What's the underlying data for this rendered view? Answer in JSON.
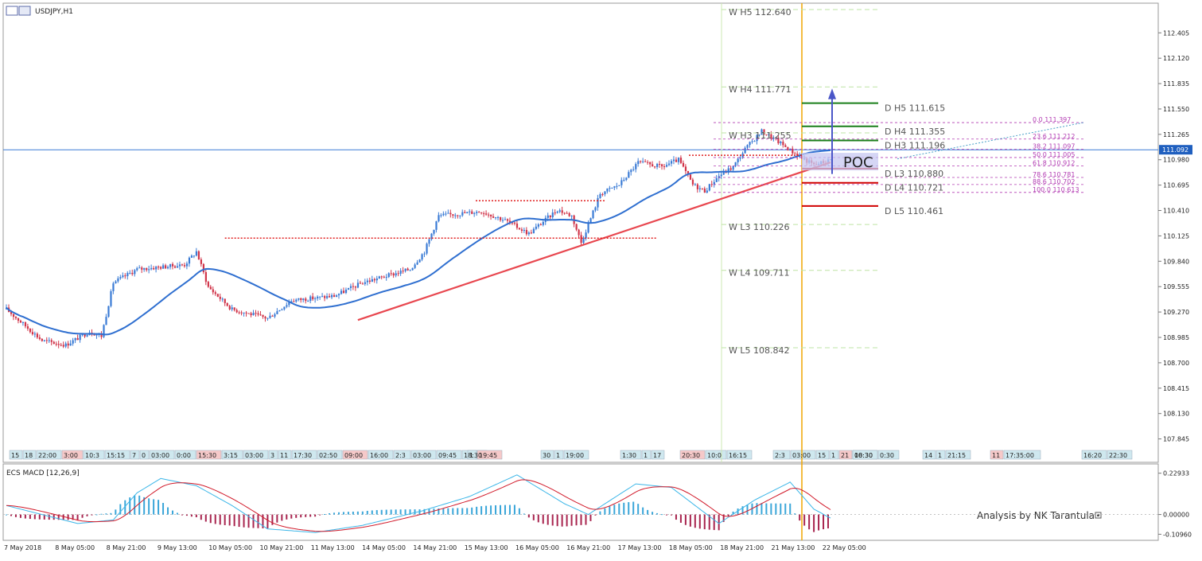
{
  "window": {
    "symbol_label": "USDJPY,H1"
  },
  "colors": {
    "bull": "#3a7bd5",
    "bear": "#d1354a",
    "ma": "#2f6fd0",
    "trend": "#e8474f",
    "vline": "#f0a500",
    "pivot_green": "#1a7f1a",
    "pivot_red": "#d00000",
    "fib": "#b23bb2",
    "hline": "#3a7bd5",
    "macd_line": "#3bb6e8",
    "signal_line": "#d11a2a"
  },
  "chart_data": [
    {
      "type": "candlestick",
      "title": "USDJPY,H1",
      "ylim": [
        107.6,
        112.72
      ],
      "price_ticks": [
        "112.405",
        "112.120",
        "111.835",
        "111.550",
        "111.265",
        "110.980",
        "110.695",
        "110.410",
        "110.125",
        "109.840",
        "109.555",
        "109.270",
        "108.985",
        "108.700",
        "108.415",
        "108.130",
        "107.845"
      ],
      "current_price_label": "111.092",
      "date_labels": [
        "7 May 2018",
        "8 May 05:00",
        "8 May 21:00",
        "9 May 13:00",
        "10 May 05:00",
        "10 May 21:00",
        "11 May 13:00",
        "14 May 05:00",
        "14 May 21:00",
        "15 May 13:00",
        "16 May 05:00",
        "16 May 21:00",
        "17 May 13:00",
        "18 May 05:00",
        "18 May 21:00",
        "21 May 13:00",
        "22 May 05:00"
      ],
      "session_labels": [
        "15",
        "18",
        "22:00",
        "3:00",
        "10:3",
        "15:15",
        "7",
        "0",
        "03:00",
        "0:00",
        "15:30",
        "3:15",
        "03:00",
        "3",
        "11",
        "17:30",
        "02:50",
        "09:00",
        "16:00",
        "2:3",
        "03:00",
        "09:45",
        "18:30",
        "1",
        "19:45",
        "30",
        "1",
        "19:00",
        "1:30",
        "1",
        "17",
        "20:30",
        "10:0",
        "16:15",
        "2:3",
        "03:00",
        "15",
        "1",
        "21",
        "00:30",
        "18:30",
        "0:30",
        "14",
        "1",
        "21:15",
        "11",
        "17:35:00",
        "16:20",
        "22:30"
      ],
      "weekly_pivots": [
        {
          "label": "W  H5 112.640",
          "value": 112.64
        },
        {
          "label": "W  H4 111.771",
          "value": 111.771
        },
        {
          "label": "W  H3 111.255",
          "value": 111.255
        },
        {
          "label": "W  L3 110.226",
          "value": 110.226
        },
        {
          "label": "W  L4 109.711",
          "value": 109.711
        },
        {
          "label": "W  L5 108.842",
          "value": 108.842
        }
      ],
      "daily_pivots": [
        {
          "label": "D  H5 111.615",
          "value": 111.615,
          "color": "#1a7f1a"
        },
        {
          "label": "D  H4 111.355",
          "value": 111.355,
          "color": "#1a7f1a"
        },
        {
          "label": "D  H3 111.196",
          "value": 111.196,
          "color": "#1a7f1a"
        },
        {
          "label": "D  L3 110.880",
          "value": 110.88,
          "color": "#d00000"
        },
        {
          "label": "D  L4 110.721",
          "value": 110.721,
          "color": "#d00000"
        },
        {
          "label": "D  L5 110.461",
          "value": 110.461,
          "color": "#d00000"
        }
      ],
      "fibonacci": [
        {
          "level": "0.0",
          "value": 111.397
        },
        {
          "level": "23.6",
          "value": 111.212
        },
        {
          "level": "38.2",
          "value": 111.097
        },
        {
          "level": "50.0",
          "value": 111.005
        },
        {
          "level": "61.8",
          "value": 110.912
        },
        {
          "level": "78.6",
          "value": 110.781
        },
        {
          "level": "88.6",
          "value": 110.702
        },
        {
          "level": "100.0",
          "value": 110.613
        }
      ],
      "resistance_levels": [
        110.1,
        110.52,
        111.03
      ],
      "poc_label": "POC",
      "poc_price": 110.95
    },
    {
      "type": "line",
      "title": "ECS MACD [12,26,9]",
      "ylim": [
        -0.13,
        0.25
      ],
      "y_ticks": [
        "0.22933",
        "0.00000",
        "-0.10960"
      ],
      "annotation": "Analysis by NK Tarantula"
    }
  ]
}
